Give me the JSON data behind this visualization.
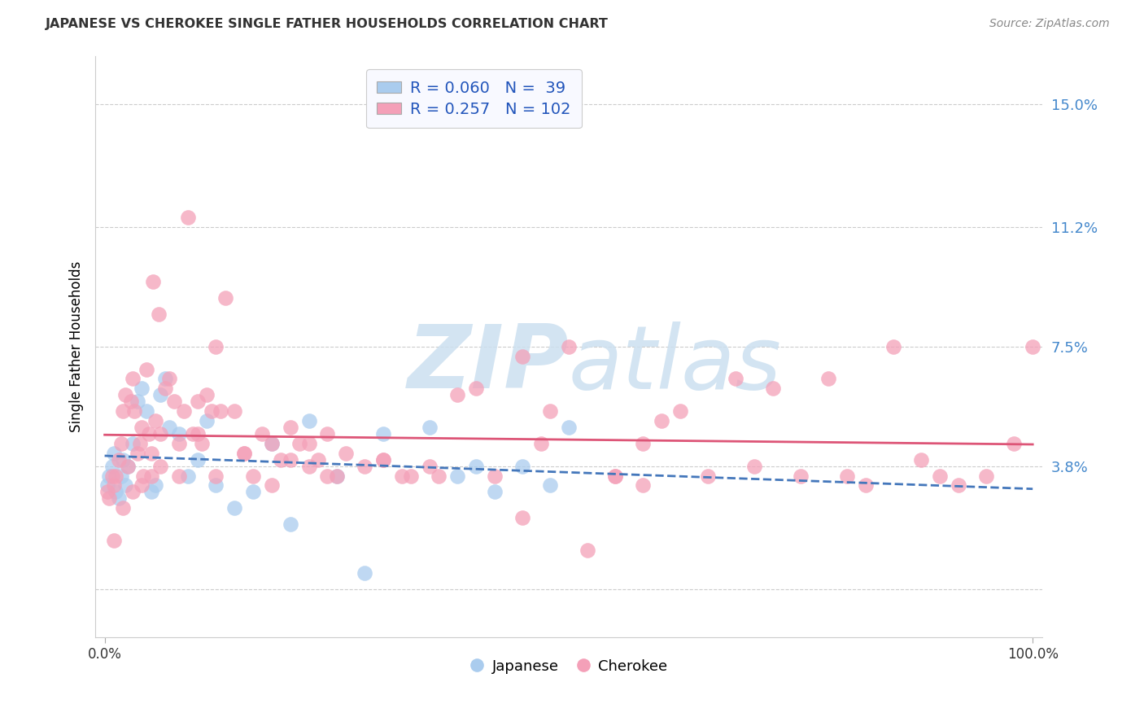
{
  "title": "JAPANESE VS CHEROKEE SINGLE FATHER HOUSEHOLDS CORRELATION CHART",
  "source": "Source: ZipAtlas.com",
  "ylabel": "Single Father Households",
  "bg_color": "#ffffff",
  "grid_color": "#cccccc",
  "japanese_color": "#aaccee",
  "cherokee_color": "#f4a0b8",
  "japanese_line_color": "#4477bb",
  "cherokee_line_color": "#dd5577",
  "japanese_R": "0.060",
  "japanese_N": "39",
  "cherokee_R": "0.257",
  "cherokee_N": "102",
  "title_color": "#333333",
  "source_color": "#888888",
  "ytick_color": "#4488cc",
  "legend_box_color": "#f8f9ff",
  "watermark_color": "#cce4f5",
  "japanese_x": [
    0.3,
    0.5,
    0.8,
    1.0,
    1.2,
    1.5,
    1.8,
    2.0,
    2.2,
    2.5,
    3.0,
    3.5,
    4.0,
    4.5,
    5.0,
    5.5,
    6.0,
    6.5,
    7.0,
    8.0,
    9.0,
    10.0,
    11.0,
    12.0,
    14.0,
    16.0,
    18.0,
    20.0,
    22.0,
    25.0,
    28.0,
    30.0,
    35.0,
    38.0,
    40.0,
    42.0,
    45.0,
    48.0,
    50.0
  ],
  "japanese_y": [
    3.2,
    3.5,
    3.8,
    4.2,
    3.0,
    2.8,
    3.5,
    4.0,
    3.2,
    3.8,
    4.5,
    5.8,
    6.2,
    5.5,
    3.0,
    3.2,
    6.0,
    6.5,
    5.0,
    4.8,
    3.5,
    4.0,
    5.2,
    3.2,
    2.5,
    3.0,
    4.5,
    2.0,
    5.2,
    3.5,
    0.5,
    4.8,
    5.0,
    3.5,
    3.8,
    3.0,
    3.8,
    3.2,
    5.0
  ],
  "cherokee_x": [
    0.3,
    0.5,
    0.8,
    1.0,
    1.2,
    1.5,
    1.8,
    2.0,
    2.2,
    2.5,
    2.8,
    3.0,
    3.2,
    3.5,
    3.8,
    4.0,
    4.2,
    4.5,
    4.8,
    5.0,
    5.2,
    5.5,
    5.8,
    6.0,
    6.5,
    7.0,
    7.5,
    8.0,
    8.5,
    9.0,
    9.5,
    10.0,
    10.5,
    11.0,
    11.5,
    12.0,
    12.5,
    13.0,
    14.0,
    15.0,
    16.0,
    17.0,
    18.0,
    19.0,
    20.0,
    21.0,
    22.0,
    23.0,
    24.0,
    25.0,
    26.0,
    28.0,
    30.0,
    32.0,
    35.0,
    38.0,
    40.0,
    42.0,
    45.0,
    48.0,
    50.0,
    52.0,
    55.0,
    58.0,
    60.0,
    62.0,
    65.0,
    68.0,
    70.0,
    72.0,
    75.0,
    78.0,
    80.0,
    82.0,
    85.0,
    88.0,
    90.0,
    92.0,
    95.0,
    98.0,
    100.0,
    55.0,
    58.0,
    45.0,
    47.0,
    30.0,
    33.0,
    36.0,
    22.0,
    24.0,
    18.0,
    20.0,
    15.0,
    12.0,
    10.0,
    8.0,
    6.0,
    5.0,
    4.0,
    3.0,
    2.0,
    1.0
  ],
  "cherokee_y": [
    3.0,
    2.8,
    3.5,
    3.2,
    3.5,
    4.0,
    4.5,
    5.5,
    6.0,
    3.8,
    5.8,
    6.5,
    5.5,
    4.2,
    4.5,
    5.0,
    3.5,
    6.8,
    4.8,
    4.2,
    9.5,
    5.2,
    8.5,
    4.8,
    6.2,
    6.5,
    5.8,
    4.5,
    5.5,
    11.5,
    4.8,
    5.8,
    4.5,
    6.0,
    5.5,
    7.5,
    5.5,
    9.0,
    5.5,
    4.2,
    3.5,
    4.8,
    4.5,
    4.0,
    5.0,
    4.5,
    4.5,
    4.0,
    4.8,
    3.5,
    4.2,
    3.8,
    4.0,
    3.5,
    3.8,
    6.0,
    6.2,
    3.5,
    7.2,
    5.5,
    7.5,
    1.2,
    3.5,
    4.5,
    5.2,
    5.5,
    3.5,
    6.5,
    3.8,
    6.2,
    3.5,
    6.5,
    3.5,
    3.2,
    7.5,
    4.0,
    3.5,
    3.2,
    3.5,
    4.5,
    7.5,
    3.5,
    3.2,
    2.2,
    4.5,
    4.0,
    3.5,
    3.5,
    3.8,
    3.5,
    3.2,
    4.0,
    4.2,
    3.5,
    4.8,
    3.5,
    3.8,
    3.5,
    3.2,
    3.0,
    2.5,
    1.5
  ]
}
